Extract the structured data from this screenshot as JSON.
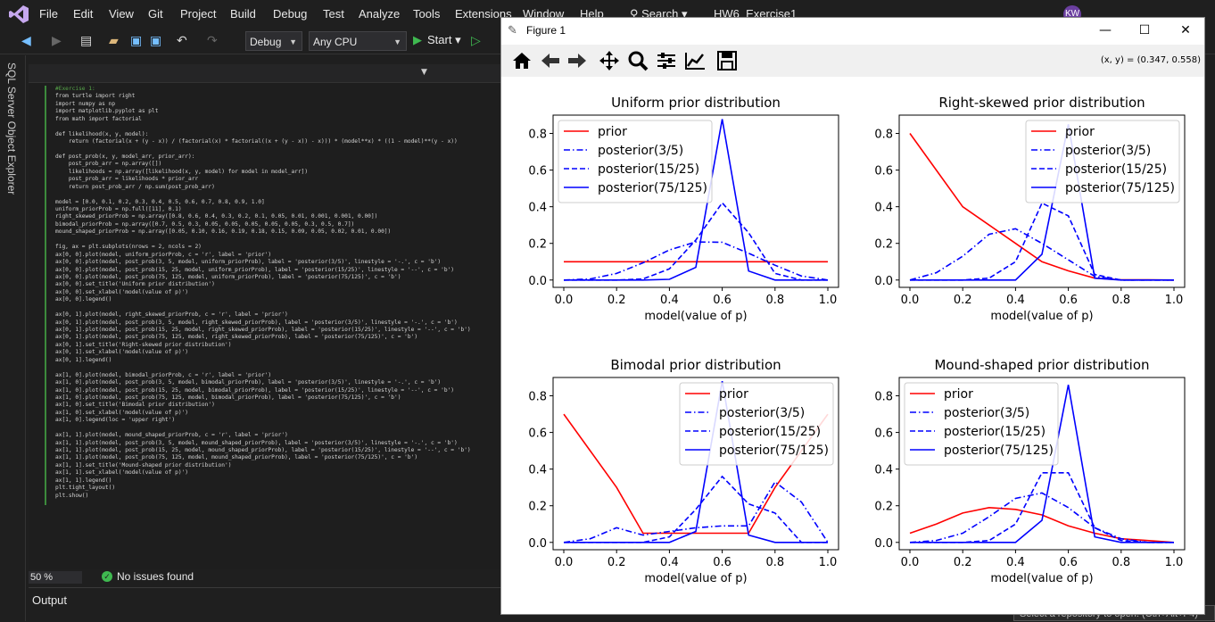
{
  "menu": [
    "File",
    "Edit",
    "View",
    "Git",
    "Project",
    "Build",
    "Debug",
    "Test",
    "Analyze",
    "Tools",
    "Extensions",
    "Window",
    "Help"
  ],
  "search_label": "Search",
  "project_name": "HW6_Exercise1",
  "avatar_initials": "KW",
  "toolbar": {
    "config": "Debug",
    "platform": "Any CPU",
    "start_label": "Start"
  },
  "left_rail_label": "SQL Server Object Explorer",
  "code_lines": [
    "#Exercise 1:",
    "from turtle import right",
    "import numpy as np",
    "import matplotlib.pyplot as plt",
    "from math import factorial",
    "",
    "def likelihood(x, y, model):",
    "    return (factorial(x + (y - x)) / (factorial(x) * factorial((x + (y - x)) - x))) * (model**x) * ((1 - model)**(y - x))",
    "",
    "def post_prob(x, y, model_arr, prior_arr):",
    "    post_prob_arr = np.array([])",
    "    likelihoods = np.array([likelihood(x, y, model) for model in model_arr])",
    "    post_prob_arr = likelihoods * prior_arr",
    "    return post_prob_arr / np.sum(post_prob_arr)",
    "",
    "model = [0.0, 0.1, 0.2, 0.3, 0.4, 0.5, 0.6, 0.7, 0.8, 0.9, 1.0]",
    "uniform_priorProb = np.full([11], 0.1)",
    "right_skewed_priorProb = np.array([0.8, 0.6, 0.4, 0.3, 0.2, 0.1, 0.05, 0.01, 0.001, 0.001, 0.00])",
    "bimodal_priorProb = np.array([0.7, 0.5, 0.3, 0.05, 0.05, 0.05, 0.05, 0.05, 0.3, 0.5, 0.7])",
    "mound_shaped_priorProb = np.array([0.05, 0.10, 0.16, 0.19, 0.18, 0.15, 0.09, 0.05, 0.02, 0.01, 0.00])",
    "",
    "fig, ax = plt.subplots(nrows = 2, ncols = 2)",
    "ax[0, 0].plot(model, uniform_priorProb, c = 'r', label = 'prior')",
    "ax[0, 0].plot(model, post_prob(3, 5, model, uniform_priorProb), label = 'posterior(3/5)', linestyle = '-.', c = 'b')",
    "ax[0, 0].plot(model, post_prob(15, 25, model, uniform_priorProb), label = 'posterior(15/25)', linestyle = '--', c = 'b')",
    "ax[0, 0].plot(model, post_prob(75, 125, model, uniform_priorProb), label = 'posterior(75/125)', c = 'b')",
    "ax[0, 0].set_title('Uniform prior distribution')",
    "ax[0, 0].set_xlabel('model(value of p)')",
    "ax[0, 0].legend()",
    "",
    "ax[0, 1].plot(model, right_skewed_priorProb, c = 'r', label = 'prior')",
    "ax[0, 1].plot(model, post_prob(3, 5, model, right_skewed_priorProb), label = 'posterior(3/5)', linestyle = '-.', c = 'b')",
    "ax[0, 1].plot(model, post_prob(15, 25, model, right_skewed_priorProb), label = 'posterior(15/25)', linestyle = '--', c = 'b')",
    "ax[0, 1].plot(model, post_prob(75, 125, model, right_skewed_priorProb), label = 'posterior(75/125)', c = 'b')",
    "ax[0, 1].set_title('Right-skewed prior distribution')",
    "ax[0, 1].set_xlabel('model(value of p)')",
    "ax[0, 1].legend()",
    "",
    "ax[1, 0].plot(model, bimodal_priorProb, c = 'r', label = 'prior')",
    "ax[1, 0].plot(model, post_prob(3, 5, model, bimodal_priorProb), label = 'posterior(3/5)', linestyle = '-.', c = 'b')",
    "ax[1, 0].plot(model, post_prob(15, 25, model, bimodal_priorProb), label = 'posterior(15/25)', linestyle = '--', c = 'b')",
    "ax[1, 0].plot(model, post_prob(75, 125, model, bimodal_priorProb), label = 'posterior(75/125)', c = 'b')",
    "ax[1, 0].set_title('Bimodal prior distribution')",
    "ax[1, 0].set_xlabel('model(value of p)')",
    "ax[1, 0].legend(loc = 'upper right')",
    "",
    "ax[1, 1].plot(model, mound_shaped_priorProb, c = 'r', label = 'prior')",
    "ax[1, 1].plot(model, post_prob(3, 5, model, mound_shaped_priorProb), label = 'posterior(3/5)', linestyle = '-.', c = 'b')",
    "ax[1, 1].plot(model, post_prob(15, 25, model, mound_shaped_priorProb), label = 'posterior(15/25)', linestyle = '--', c = 'b')",
    "ax[1, 1].plot(model, post_prob(75, 125, model, mound_shaped_priorProb), label = 'posterior(75/125)', c = 'b')",
    "ax[1, 1].set_title('Mound-shaped prior distribution')",
    "ax[1, 1].set_xlabel('model(value of p)')",
    "ax[1, 1].legend()",
    "plt.tight_layout()",
    "plt.show()"
  ],
  "status": {
    "zoom": "50 %",
    "issues": "No issues found"
  },
  "output_title": "Output",
  "git_hint": "Select a repository to open. (Ctrl+Alt+F4)",
  "figure": {
    "window_title": "Figure 1",
    "coords": "(x, y) = (0.347, 0.558)"
  },
  "chart_data": [
    {
      "type": "line",
      "title": "Uniform prior distribution",
      "xlabel": "model(value of p)",
      "xlim": [
        0,
        1
      ],
      "ylim": [
        0,
        0.9
      ],
      "xticks": [
        0.0,
        0.2,
        0.4,
        0.6,
        0.8,
        1.0
      ],
      "yticks": [
        0.0,
        0.2,
        0.4,
        0.6,
        0.8
      ],
      "legend": "upper-left",
      "x": [
        0.0,
        0.1,
        0.2,
        0.3,
        0.4,
        0.5,
        0.6,
        0.7,
        0.8,
        0.9,
        1.0
      ],
      "series": [
        {
          "name": "prior",
          "color": "#ff0000",
          "style": "solid",
          "values": [
            0.1,
            0.1,
            0.1,
            0.1,
            0.1,
            0.1,
            0.1,
            0.1,
            0.1,
            0.1,
            0.1
          ]
        },
        {
          "name": "posterior(3/5)",
          "color": "#0000ff",
          "style": "dashdot",
          "values": [
            0.0,
            0.006,
            0.036,
            0.094,
            0.164,
            0.208,
            0.206,
            0.146,
            0.081,
            0.022,
            0.0
          ]
        },
        {
          "name": "posterior(15/25)",
          "color": "#0000ff",
          "style": "dashed",
          "values": [
            0.0,
            0.0,
            0.0,
            0.006,
            0.061,
            0.218,
            0.421,
            0.258,
            0.036,
            0.0,
            0.0
          ]
        },
        {
          "name": "posterior(75/125)",
          "color": "#0000ff",
          "style": "solid",
          "values": [
            0.0,
            0.0,
            0.0,
            0.0,
            0.004,
            0.069,
            0.878,
            0.049,
            0.0,
            0.0,
            0.0
          ]
        }
      ]
    },
    {
      "type": "line",
      "title": "Right-skewed prior distribution",
      "xlabel": "model(value of p)",
      "xlim": [
        0,
        1
      ],
      "ylim": [
        0,
        0.9
      ],
      "xticks": [
        0.0,
        0.2,
        0.4,
        0.6,
        0.8,
        1.0
      ],
      "yticks": [
        0.0,
        0.2,
        0.4,
        0.6,
        0.8
      ],
      "legend": "upper-right",
      "x": [
        0.0,
        0.1,
        0.2,
        0.3,
        0.4,
        0.5,
        0.6,
        0.7,
        0.8,
        0.9,
        1.0
      ],
      "series": [
        {
          "name": "prior",
          "color": "#ff0000",
          "style": "solid",
          "values": [
            0.8,
            0.6,
            0.4,
            0.3,
            0.2,
            0.1,
            0.05,
            0.01,
            0.001,
            0.001,
            0.0
          ]
        },
        {
          "name": "posterior(3/5)",
          "color": "#0000ff",
          "style": "dashdot",
          "values": [
            0.0,
            0.04,
            0.13,
            0.25,
            0.28,
            0.2,
            0.11,
            0.02,
            0.0,
            0.0,
            0.0
          ]
        },
        {
          "name": "posterior(15/25)",
          "color": "#0000ff",
          "style": "dashed",
          "values": [
            0.0,
            0.0,
            0.0,
            0.01,
            0.1,
            0.42,
            0.35,
            0.03,
            0.0,
            0.0,
            0.0
          ]
        },
        {
          "name": "posterior(75/125)",
          "color": "#0000ff",
          "style": "solid",
          "values": [
            0.0,
            0.0,
            0.0,
            0.0,
            0.0,
            0.14,
            0.85,
            0.01,
            0.0,
            0.0,
            0.0
          ]
        }
      ]
    },
    {
      "type": "line",
      "title": "Bimodal prior distribution",
      "xlabel": "model(value of p)",
      "xlim": [
        0,
        1
      ],
      "ylim": [
        0,
        0.9
      ],
      "xticks": [
        0.0,
        0.2,
        0.4,
        0.6,
        0.8,
        1.0
      ],
      "yticks": [
        0.0,
        0.2,
        0.4,
        0.6,
        0.8
      ],
      "legend": "upper-right",
      "x": [
        0.0,
        0.1,
        0.2,
        0.3,
        0.4,
        0.5,
        0.6,
        0.7,
        0.8,
        0.9,
        1.0
      ],
      "series": [
        {
          "name": "prior",
          "color": "#ff0000",
          "style": "solid",
          "values": [
            0.7,
            0.5,
            0.3,
            0.05,
            0.05,
            0.05,
            0.05,
            0.05,
            0.3,
            0.5,
            0.7
          ]
        },
        {
          "name": "posterior(3/5)",
          "color": "#0000ff",
          "style": "dashdot",
          "values": [
            0.0,
            0.02,
            0.08,
            0.04,
            0.06,
            0.08,
            0.09,
            0.09,
            0.33,
            0.22,
            0.0
          ]
        },
        {
          "name": "posterior(15/25)",
          "color": "#0000ff",
          "style": "dashed",
          "values": [
            0.0,
            0.0,
            0.0,
            0.0,
            0.03,
            0.18,
            0.36,
            0.21,
            0.16,
            0.0,
            0.0
          ]
        },
        {
          "name": "posterior(75/125)",
          "color": "#0000ff",
          "style": "solid",
          "values": [
            0.0,
            0.0,
            0.0,
            0.0,
            0.0,
            0.06,
            0.88,
            0.04,
            0.0,
            0.0,
            0.0
          ]
        }
      ]
    },
    {
      "type": "line",
      "title": "Mound-shaped prior distribution",
      "xlabel": "model(value of p)",
      "xlim": [
        0,
        1
      ],
      "ylim": [
        0,
        0.9
      ],
      "xticks": [
        0.0,
        0.2,
        0.4,
        0.6,
        0.8,
        1.0
      ],
      "yticks": [
        0.0,
        0.2,
        0.4,
        0.6,
        0.8
      ],
      "legend": "upper-left",
      "x": [
        0.0,
        0.1,
        0.2,
        0.3,
        0.4,
        0.5,
        0.6,
        0.7,
        0.8,
        0.9,
        1.0
      ],
      "series": [
        {
          "name": "prior",
          "color": "#ff0000",
          "style": "solid",
          "values": [
            0.05,
            0.1,
            0.16,
            0.19,
            0.18,
            0.15,
            0.09,
            0.05,
            0.02,
            0.01,
            0.0
          ]
        },
        {
          "name": "posterior(3/5)",
          "color": "#0000ff",
          "style": "dashdot",
          "values": [
            0.0,
            0.01,
            0.05,
            0.14,
            0.24,
            0.27,
            0.19,
            0.08,
            0.02,
            0.0,
            0.0
          ]
        },
        {
          "name": "posterior(15/25)",
          "color": "#0000ff",
          "style": "dashed",
          "values": [
            0.0,
            0.0,
            0.0,
            0.01,
            0.1,
            0.38,
            0.38,
            0.08,
            0.01,
            0.0,
            0.0
          ]
        },
        {
          "name": "posterior(75/125)",
          "color": "#0000ff",
          "style": "solid",
          "values": [
            0.0,
            0.0,
            0.0,
            0.0,
            0.0,
            0.12,
            0.86,
            0.03,
            0.0,
            0.0,
            0.0
          ]
        }
      ]
    }
  ]
}
